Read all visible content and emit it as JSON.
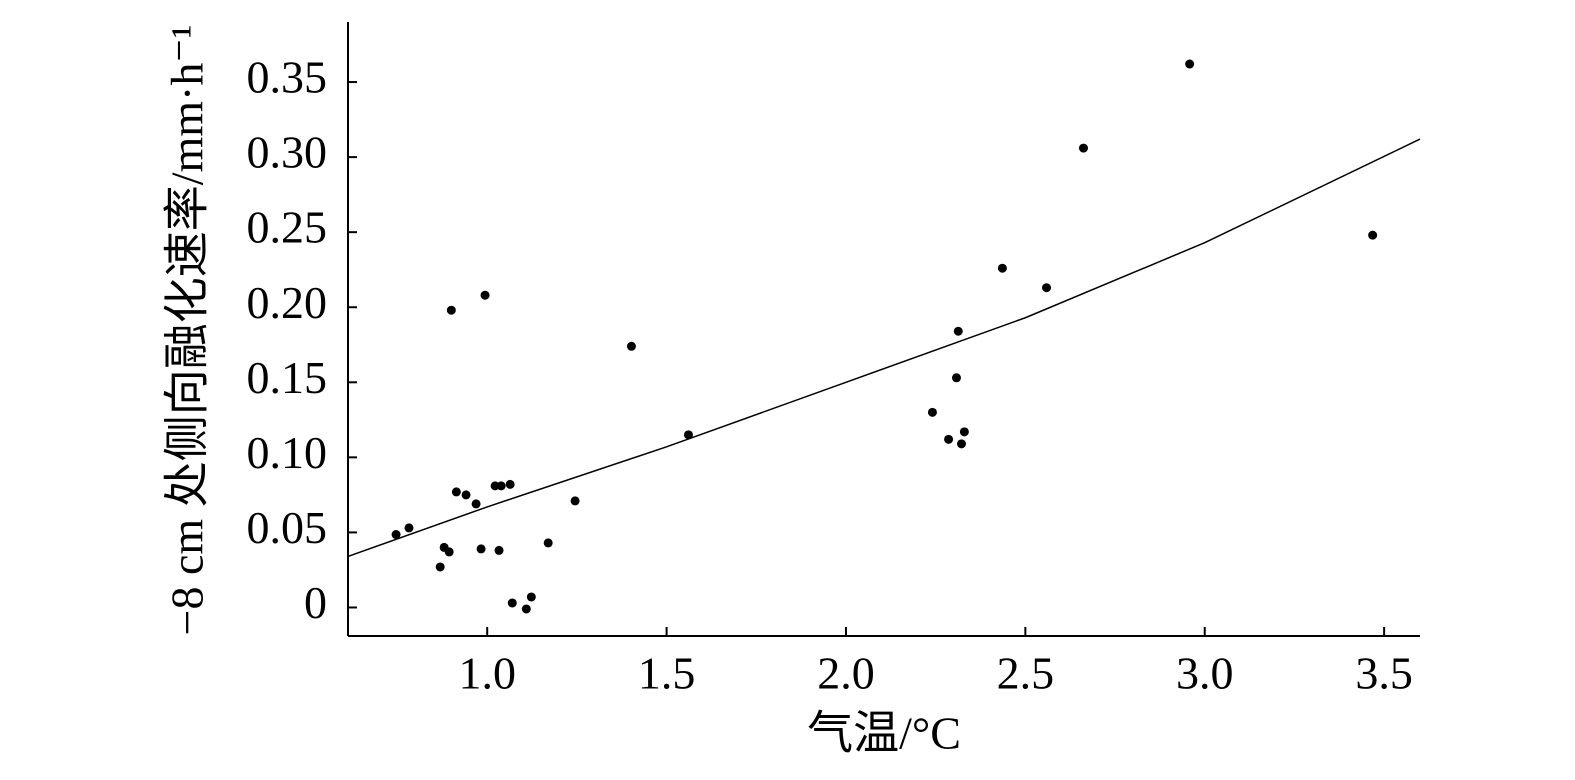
{
  "chart_data": {
    "type": "scatter",
    "xlabel": "气温/°C",
    "ylabel": "−8 cm 处侧向融化速率/mm·h⁻¹",
    "xlim": [
      0.612,
      3.6
    ],
    "ylim": [
      -0.019,
      0.39
    ],
    "xticks": [
      {
        "value": 1.0,
        "label": "1.0"
      },
      1.5,
      {
        "value": 2.0,
        "label": "2.0"
      },
      2.5,
      {
        "value": 3.0,
        "label": "3.0"
      },
      3.5
    ],
    "yticks": [
      0,
      0.05,
      {
        "value": 0.1,
        "label": "0.10"
      },
      0.15,
      {
        "value": 0.2,
        "label": "0.20"
      },
      0.25,
      {
        "value": 0.3,
        "label": "0.30"
      },
      0.35
    ],
    "color": "#000000",
    "x": [
      0.746,
      0.782,
      0.869,
      0.88,
      0.894,
      0.9,
      0.914,
      0.941,
      0.969,
      0.983,
      0.994,
      1.022,
      1.033,
      1.039,
      1.064,
      1.07,
      1.109,
      1.123,
      1.17,
      1.245,
      1.402,
      1.561,
      2.241,
      2.286,
      2.308,
      2.313,
      2.322,
      2.33,
      2.436,
      2.559,
      2.662,
      2.958,
      3.468
    ],
    "values": [
      0.0486,
      0.053,
      0.027,
      0.04,
      0.037,
      0.198,
      0.077,
      0.075,
      0.069,
      0.039,
      0.208,
      0.081,
      0.038,
      0.081,
      0.082,
      0.003,
      -0.001,
      0.007,
      0.043,
      0.071,
      0.174,
      0.115,
      0.13,
      0.112,
      0.153,
      0.184,
      0.109,
      0.117,
      0.226,
      0.213,
      0.306,
      0.362,
      0.248
    ],
    "fit": {
      "x": [
        0.612,
        1.0,
        1.5,
        2.0,
        2.5,
        3.0,
        3.6
      ],
      "values": [
        0.034,
        0.067,
        0.107,
        0.15,
        0.193,
        0.243,
        0.312
      ]
    }
  }
}
